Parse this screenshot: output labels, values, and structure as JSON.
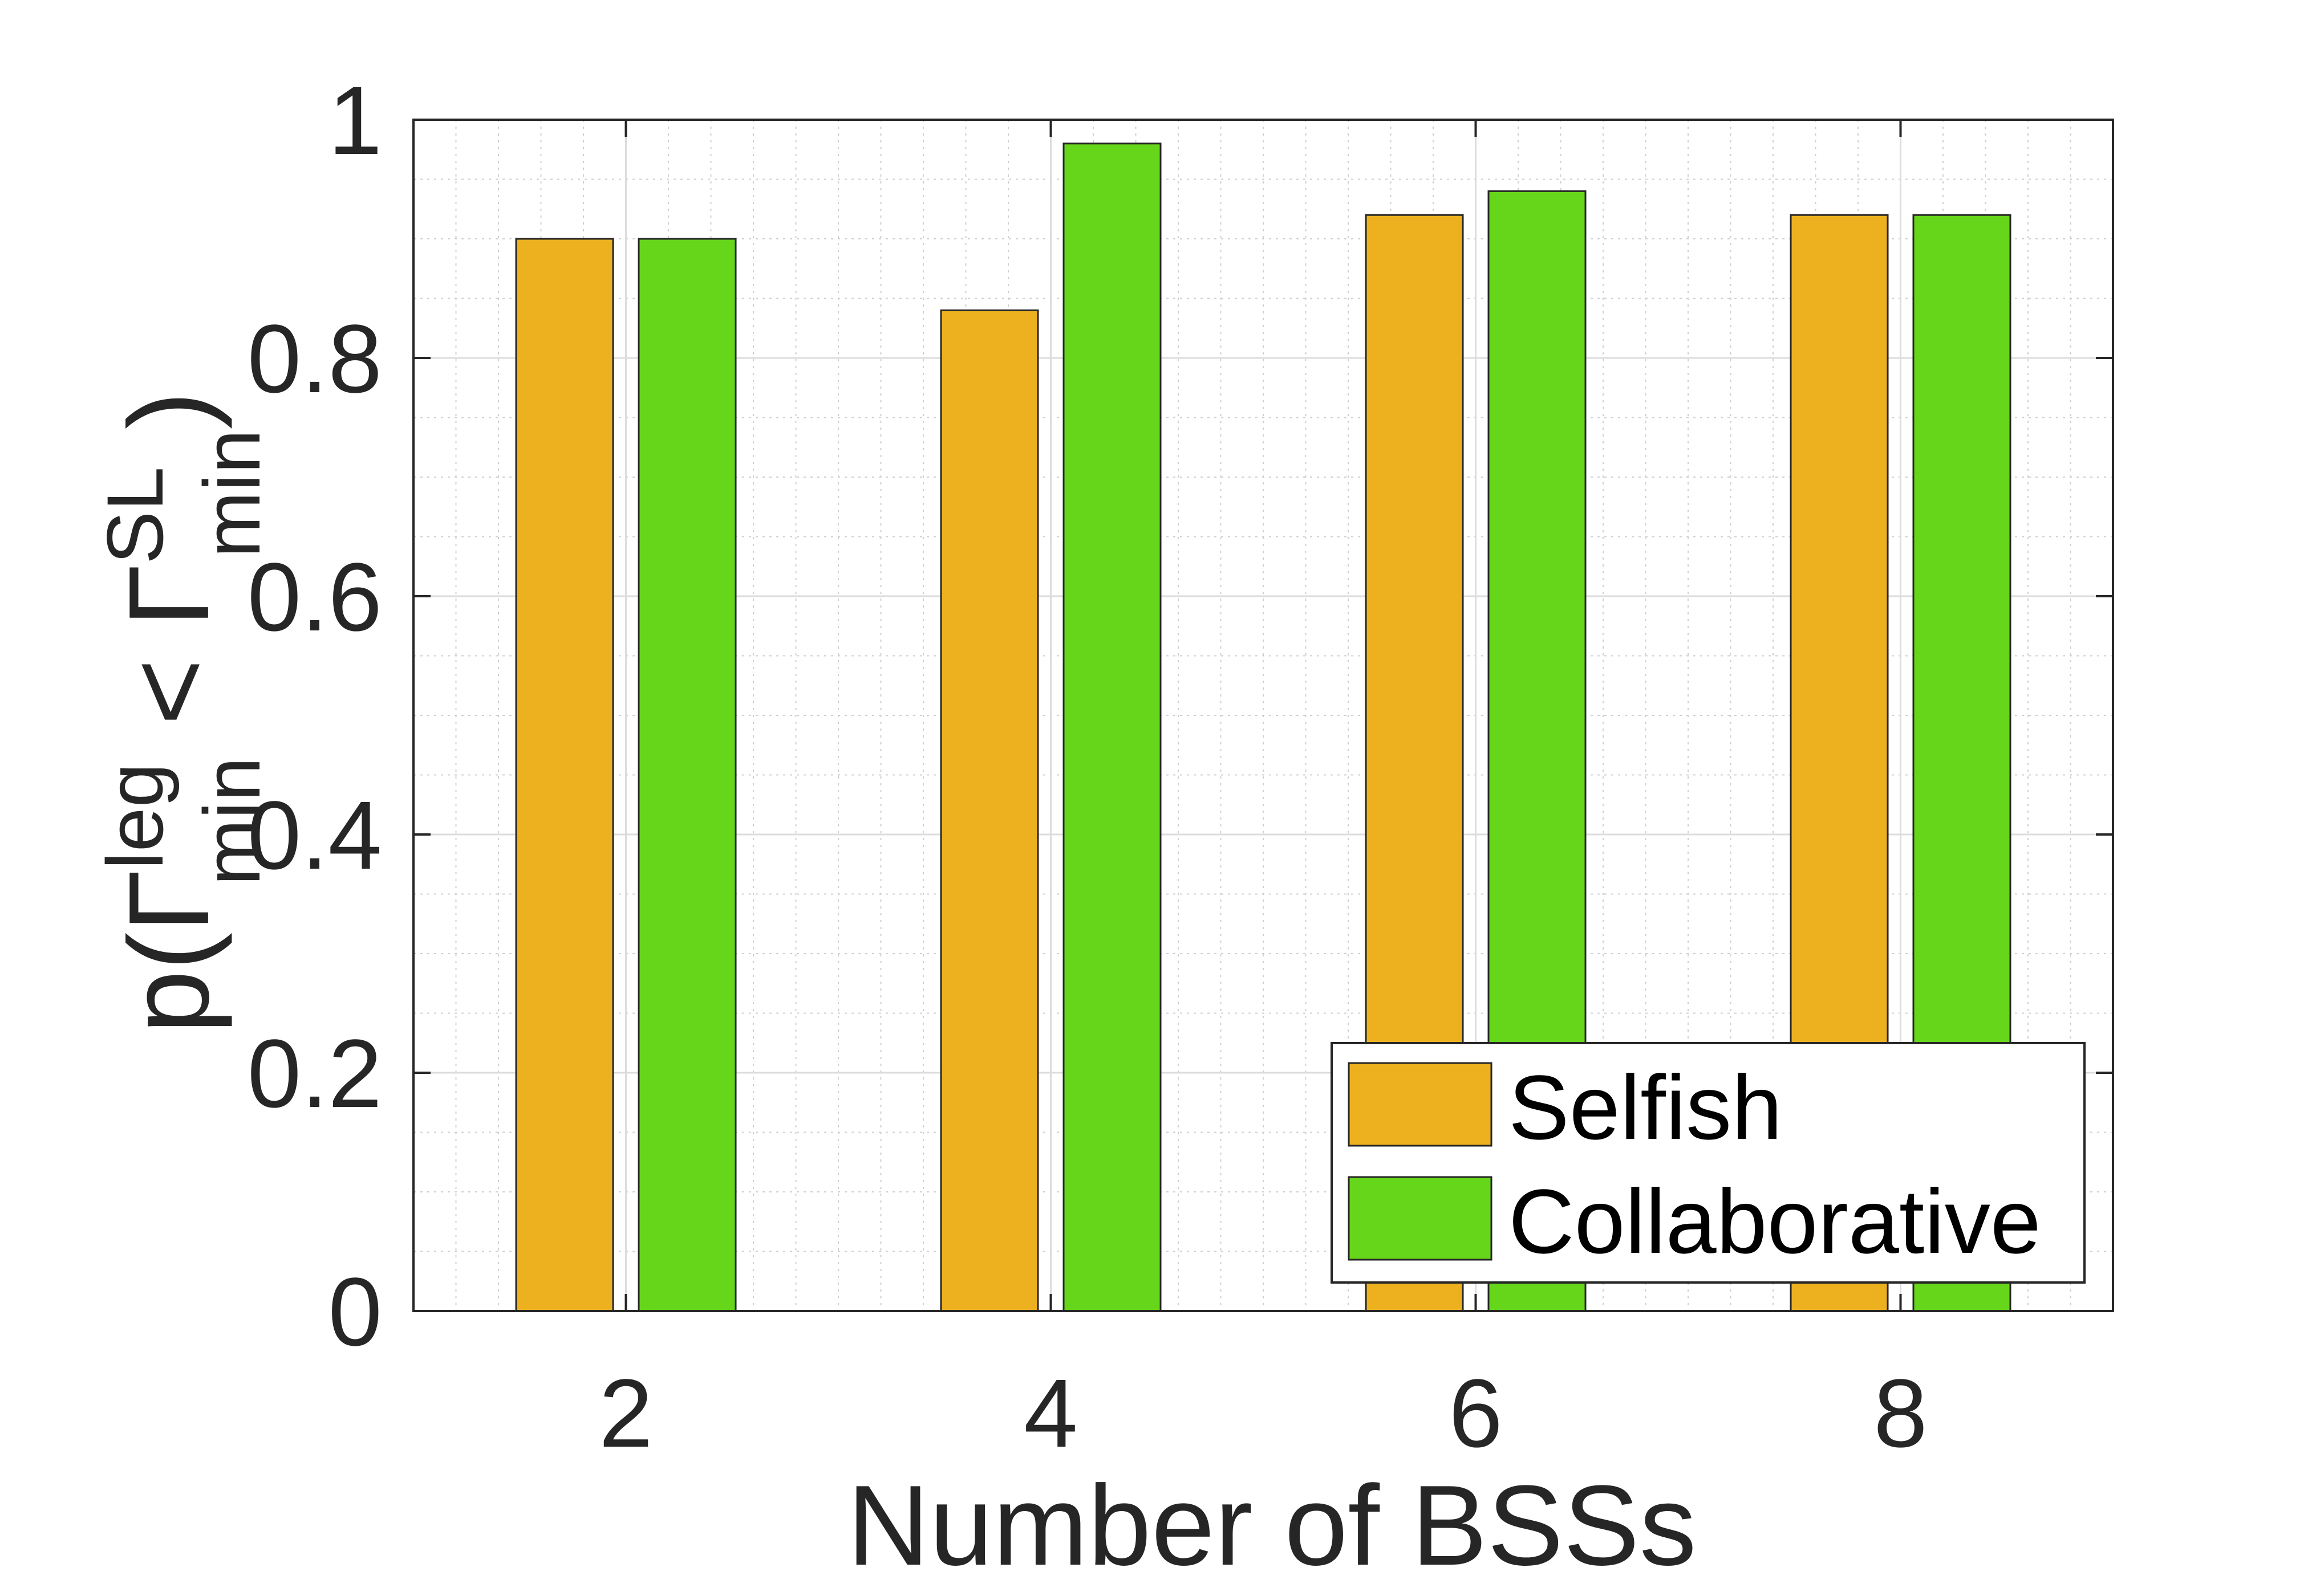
{
  "chart_data": {
    "type": "bar",
    "categories": [
      "2",
      "4",
      "6",
      "8"
    ],
    "series": [
      {
        "name": "Selfish",
        "color": "#EDB120",
        "values": [
          0.9,
          0.84,
          0.92,
          0.92
        ]
      },
      {
        "name": "Collaborative",
        "color": "#66D61A",
        "values": [
          0.9,
          0.98,
          0.94,
          0.92
        ]
      }
    ],
    "xlabel": "Number of BSSs",
    "ylabel": {
      "base": "p(Γ",
      "sup1": "leg",
      "sub1": "min",
      "mid": " < Γ",
      "sup2": "SL",
      "sub2": "min",
      "end": ")"
    },
    "xlim": [
      1,
      9
    ],
    "ylim": [
      0,
      1
    ],
    "xticks": [
      2,
      4,
      6,
      8
    ],
    "xtick_labels": [
      "2",
      "4",
      "6",
      "8"
    ],
    "yticks": [
      0,
      0.2,
      0.4,
      0.6,
      0.8,
      1
    ],
    "ytick_labels": [
      "0",
      "0.2",
      "0.4",
      "0.6",
      "0.8",
      "1"
    ],
    "grid": true,
    "minor_grid": true,
    "legend_position": "bottom-right"
  }
}
